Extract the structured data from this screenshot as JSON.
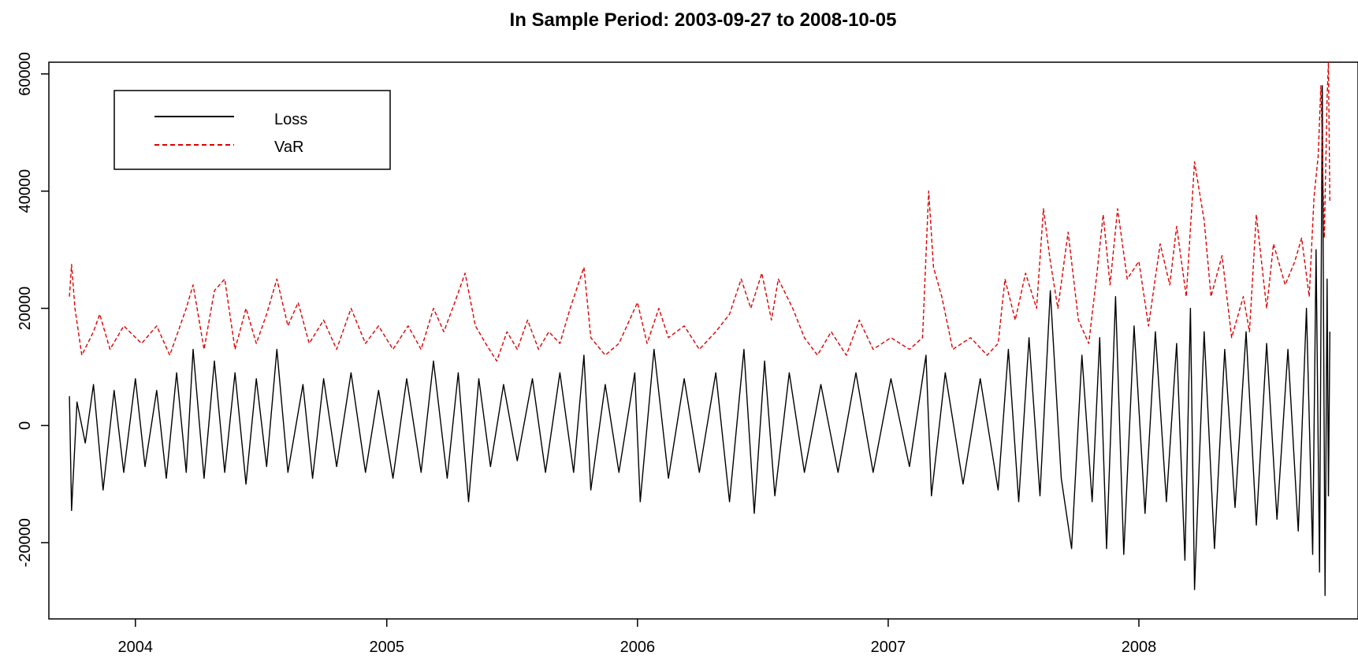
{
  "chart_data": {
    "type": "line",
    "title": "In Sample Period: 2003-09-27 to 2008-10-05",
    "xlabel": "",
    "ylabel": "",
    "x_range": [
      "2003-09-27",
      "2008-10-05"
    ],
    "xlim": [
      "2003-08-28",
      "2008-11-15"
    ],
    "ylim": [
      -33000,
      62000
    ],
    "x_ticks": [
      "2004",
      "2005",
      "2006",
      "2007",
      "2008"
    ],
    "y_ticks": [
      -20000,
      0,
      20000,
      40000,
      60000
    ],
    "y_tick_labels": [
      "-20000",
      "0",
      "20000",
      "40000",
      "60000"
    ],
    "legend": {
      "position": "top-left"
    },
    "grid": false,
    "series": [
      {
        "name": "Loss",
        "color": "#000000",
        "line_style": "solid",
        "points": [
          [
            "2003-09-27",
            5000
          ],
          [
            "2003-09-30",
            -14500
          ],
          [
            "2003-10-08",
            4000
          ],
          [
            "2003-10-20",
            -3000
          ],
          [
            "2003-11-01",
            7000
          ],
          [
            "2003-11-15",
            -11000
          ],
          [
            "2003-12-01",
            6000
          ],
          [
            "2003-12-15",
            -8000
          ],
          [
            "2004-01-01",
            8000
          ],
          [
            "2004-01-15",
            -7000
          ],
          [
            "2004-02-01",
            6000
          ],
          [
            "2004-02-15",
            -9000
          ],
          [
            "2004-03-01",
            9000
          ],
          [
            "2004-03-15",
            -8000
          ],
          [
            "2004-03-25",
            13000
          ],
          [
            "2004-04-10",
            -9000
          ],
          [
            "2004-04-25",
            11000
          ],
          [
            "2004-05-10",
            -8000
          ],
          [
            "2004-05-25",
            9000
          ],
          [
            "2004-06-10",
            -10000
          ],
          [
            "2004-06-25",
            8000
          ],
          [
            "2004-07-10",
            -7000
          ],
          [
            "2004-07-25",
            13000
          ],
          [
            "2004-08-10",
            -8000
          ],
          [
            "2004-09-01",
            7000
          ],
          [
            "2004-09-15",
            -9000
          ],
          [
            "2004-10-01",
            8000
          ],
          [
            "2004-10-20",
            -7000
          ],
          [
            "2004-11-10",
            9000
          ],
          [
            "2004-12-01",
            -8000
          ],
          [
            "2004-12-20",
            6000
          ],
          [
            "2005-01-10",
            -9000
          ],
          [
            "2005-01-30",
            8000
          ],
          [
            "2005-02-20",
            -8000
          ],
          [
            "2005-03-10",
            11000
          ],
          [
            "2005-03-30",
            -9000
          ],
          [
            "2005-04-15",
            9000
          ],
          [
            "2005-04-30",
            -13000
          ],
          [
            "2005-05-15",
            8000
          ],
          [
            "2005-06-01",
            -7000
          ],
          [
            "2005-06-20",
            7000
          ],
          [
            "2005-07-10",
            -6000
          ],
          [
            "2005-08-01",
            8000
          ],
          [
            "2005-08-20",
            -8000
          ],
          [
            "2005-09-10",
            9000
          ],
          [
            "2005-09-30",
            -8000
          ],
          [
            "2005-10-15",
            12000
          ],
          [
            "2005-10-25",
            -11000
          ],
          [
            "2005-11-15",
            7000
          ],
          [
            "2005-12-05",
            -8000
          ],
          [
            "2005-12-28",
            9000
          ],
          [
            "2006-01-05",
            -13000
          ],
          [
            "2006-01-25",
            13000
          ],
          [
            "2006-02-15",
            -9000
          ],
          [
            "2006-03-10",
            8000
          ],
          [
            "2006-04-01",
            -8000
          ],
          [
            "2006-04-25",
            9000
          ],
          [
            "2006-05-15",
            -13000
          ],
          [
            "2006-06-05",
            13000
          ],
          [
            "2006-06-20",
            -15000
          ],
          [
            "2006-07-05",
            11000
          ],
          [
            "2006-07-20",
            -12000
          ],
          [
            "2006-08-10",
            9000
          ],
          [
            "2006-09-01",
            -8000
          ],
          [
            "2006-09-25",
            7000
          ],
          [
            "2006-10-20",
            -8000
          ],
          [
            "2006-11-15",
            9000
          ],
          [
            "2006-12-10",
            -8000
          ],
          [
            "2007-01-05",
            8000
          ],
          [
            "2007-02-01",
            -7000
          ],
          [
            "2007-02-25",
            12000
          ],
          [
            "2007-03-05",
            -12000
          ],
          [
            "2007-03-25",
            9000
          ],
          [
            "2007-04-20",
            -10000
          ],
          [
            "2007-05-15",
            8000
          ],
          [
            "2007-06-10",
            -11000
          ],
          [
            "2007-06-25",
            13000
          ],
          [
            "2007-07-10",
            -13000
          ],
          [
            "2007-07-25",
            15000
          ],
          [
            "2007-08-10",
            -12000
          ],
          [
            "2007-08-25",
            23000
          ],
          [
            "2007-09-10",
            -9000
          ],
          [
            "2007-09-25",
            -21000
          ],
          [
            "2007-10-10",
            12000
          ],
          [
            "2007-10-25",
            -13000
          ],
          [
            "2007-11-05",
            15000
          ],
          [
            "2007-11-15",
            -21000
          ],
          [
            "2007-11-28",
            22000
          ],
          [
            "2007-12-10",
            -22000
          ],
          [
            "2007-12-25",
            17000
          ],
          [
            "2008-01-10",
            -15000
          ],
          [
            "2008-01-25",
            16000
          ],
          [
            "2008-02-10",
            -13000
          ],
          [
            "2008-02-25",
            14000
          ],
          [
            "2008-03-08",
            -23000
          ],
          [
            "2008-03-16",
            20000
          ],
          [
            "2008-03-22",
            -28000
          ],
          [
            "2008-04-05",
            16000
          ],
          [
            "2008-04-20",
            -21000
          ],
          [
            "2008-05-05",
            13000
          ],
          [
            "2008-05-20",
            -14000
          ],
          [
            "2008-06-05",
            16000
          ],
          [
            "2008-06-20",
            -17000
          ],
          [
            "2008-07-05",
            14000
          ],
          [
            "2008-07-20",
            -16000
          ],
          [
            "2008-08-05",
            13000
          ],
          [
            "2008-08-20",
            -18000
          ],
          [
            "2008-09-01",
            20000
          ],
          [
            "2008-09-10",
            -22000
          ],
          [
            "2008-09-15",
            30000
          ],
          [
            "2008-09-20",
            -25000
          ],
          [
            "2008-09-24",
            58000
          ],
          [
            "2008-09-28",
            -29000
          ],
          [
            "2008-10-01",
            25000
          ],
          [
            "2008-10-03",
            -12000
          ],
          [
            "2008-10-05",
            16000
          ]
        ]
      },
      {
        "name": "VaR",
        "color": "#dd0000",
        "line_style": "dashed",
        "points": [
          [
            "2003-09-27",
            22000
          ],
          [
            "2003-09-30",
            27500
          ],
          [
            "2003-10-05",
            20000
          ],
          [
            "2003-10-15",
            12000
          ],
          [
            "2003-11-01",
            16000
          ],
          [
            "2003-11-10",
            19000
          ],
          [
            "2003-11-25",
            13000
          ],
          [
            "2003-12-15",
            17000
          ],
          [
            "2004-01-10",
            14000
          ],
          [
            "2004-02-01",
            17000
          ],
          [
            "2004-02-20",
            12000
          ],
          [
            "2004-03-15",
            20000
          ],
          [
            "2004-03-25",
            24000
          ],
          [
            "2004-04-10",
            13000
          ],
          [
            "2004-04-25",
            23000
          ],
          [
            "2004-05-10",
            25000
          ],
          [
            "2004-05-25",
            13000
          ],
          [
            "2004-06-10",
            20000
          ],
          [
            "2004-06-25",
            14000
          ],
          [
            "2004-07-10",
            19000
          ],
          [
            "2004-07-25",
            25000
          ],
          [
            "2004-08-10",
            17000
          ],
          [
            "2004-08-25",
            21000
          ],
          [
            "2004-09-10",
            14000
          ],
          [
            "2004-10-01",
            18000
          ],
          [
            "2004-10-20",
            13000
          ],
          [
            "2004-11-10",
            20000
          ],
          [
            "2004-12-01",
            14000
          ],
          [
            "2004-12-20",
            17000
          ],
          [
            "2005-01-10",
            13000
          ],
          [
            "2005-02-01",
            17000
          ],
          [
            "2005-02-20",
            13000
          ],
          [
            "2005-03-10",
            20000
          ],
          [
            "2005-03-25",
            16000
          ],
          [
            "2005-04-10",
            21000
          ],
          [
            "2005-04-25",
            26000
          ],
          [
            "2005-05-10",
            17000
          ],
          [
            "2005-05-25",
            14000
          ],
          [
            "2005-06-10",
            11000
          ],
          [
            "2005-06-25",
            16000
          ],
          [
            "2005-07-10",
            13000
          ],
          [
            "2005-07-25",
            18000
          ],
          [
            "2005-08-10",
            13000
          ],
          [
            "2005-08-25",
            16000
          ],
          [
            "2005-09-10",
            14000
          ],
          [
            "2005-09-25",
            20000
          ],
          [
            "2005-10-15",
            27000
          ],
          [
            "2005-10-25",
            15000
          ],
          [
            "2005-11-15",
            12000
          ],
          [
            "2005-12-05",
            14000
          ],
          [
            "2006-01-01",
            21000
          ],
          [
            "2006-01-15",
            14000
          ],
          [
            "2006-02-01",
            20000
          ],
          [
            "2006-02-15",
            15000
          ],
          [
            "2006-03-10",
            17000
          ],
          [
            "2006-04-01",
            13000
          ],
          [
            "2006-04-25",
            16000
          ],
          [
            "2006-05-15",
            19000
          ],
          [
            "2006-06-01",
            25000
          ],
          [
            "2006-06-15",
            20000
          ],
          [
            "2006-07-01",
            26000
          ],
          [
            "2006-07-15",
            18000
          ],
          [
            "2006-07-25",
            25000
          ],
          [
            "2006-08-15",
            20000
          ],
          [
            "2006-09-01",
            15000
          ],
          [
            "2006-09-20",
            12000
          ],
          [
            "2006-10-10",
            16000
          ],
          [
            "2006-11-01",
            12000
          ],
          [
            "2006-11-20",
            18000
          ],
          [
            "2006-12-10",
            13000
          ],
          [
            "2007-01-05",
            15000
          ],
          [
            "2007-02-01",
            13000
          ],
          [
            "2007-02-20",
            15000
          ],
          [
            "2007-03-01",
            40000
          ],
          [
            "2007-03-08",
            27000
          ],
          [
            "2007-03-20",
            22000
          ],
          [
            "2007-04-05",
            13000
          ],
          [
            "2007-05-01",
            15000
          ],
          [
            "2007-05-25",
            12000
          ],
          [
            "2007-06-10",
            14000
          ],
          [
            "2007-06-20",
            25000
          ],
          [
            "2007-07-05",
            18000
          ],
          [
            "2007-07-20",
            26000
          ],
          [
            "2007-08-05",
            20000
          ],
          [
            "2007-08-15",
            37000
          ],
          [
            "2007-08-25",
            28000
          ],
          [
            "2007-09-05",
            20000
          ],
          [
            "2007-09-20",
            33000
          ],
          [
            "2007-10-05",
            18000
          ],
          [
            "2007-10-20",
            14000
          ],
          [
            "2007-11-01",
            26000
          ],
          [
            "2007-11-10",
            36000
          ],
          [
            "2007-11-20",
            24000
          ],
          [
            "2007-12-01",
            37000
          ],
          [
            "2007-12-15",
            25000
          ],
          [
            "2008-01-01",
            28000
          ],
          [
            "2008-01-15",
            17000
          ],
          [
            "2008-02-01",
            31000
          ],
          [
            "2008-02-15",
            24000
          ],
          [
            "2008-02-25",
            34000
          ],
          [
            "2008-03-10",
            22000
          ],
          [
            "2008-03-22",
            45000
          ],
          [
            "2008-04-05",
            35000
          ],
          [
            "2008-04-15",
            22000
          ],
          [
            "2008-05-01",
            29000
          ],
          [
            "2008-05-15",
            15000
          ],
          [
            "2008-06-01",
            22000
          ],
          [
            "2008-06-10",
            16000
          ],
          [
            "2008-06-20",
            36000
          ],
          [
            "2008-07-05",
            20000
          ],
          [
            "2008-07-15",
            31000
          ],
          [
            "2008-08-01",
            24000
          ],
          [
            "2008-08-15",
            28000
          ],
          [
            "2008-08-25",
            32000
          ],
          [
            "2008-09-05",
            22000
          ],
          [
            "2008-09-12",
            39000
          ],
          [
            "2008-09-18",
            46000
          ],
          [
            "2008-09-22",
            58000
          ],
          [
            "2008-09-27",
            32000
          ],
          [
            "2008-10-01",
            56000
          ],
          [
            "2008-10-03",
            62000
          ],
          [
            "2008-10-05",
            38000
          ]
        ]
      }
    ]
  }
}
